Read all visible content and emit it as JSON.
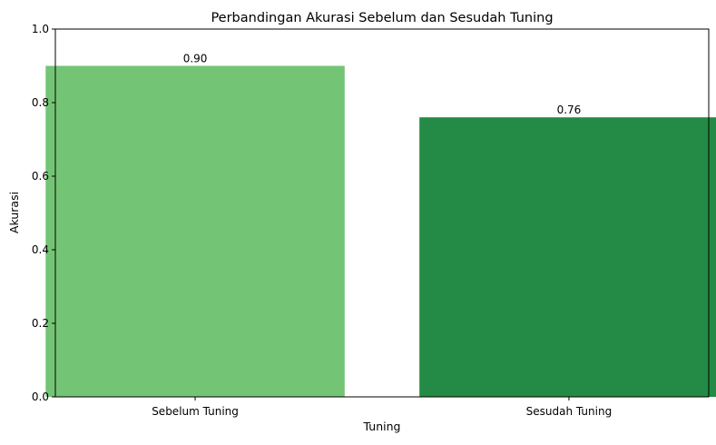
{
  "chart_data": {
    "type": "bar",
    "title": "Perbandingan Akurasi Sebelum dan Sesudah Tuning",
    "xlabel": "Tuning",
    "ylabel": "Akurasi",
    "categories": [
      "Sebelum Tuning",
      "Sesudah Tuning"
    ],
    "values": [
      0.9,
      0.76
    ],
    "data_labels": [
      "0.90",
      "0.76"
    ],
    "colors": [
      "#74c476",
      "#238b45"
    ],
    "ylim": [
      0,
      1.0
    ],
    "yticks": [
      0.0,
      0.2,
      0.4,
      0.6,
      0.8,
      1.0
    ],
    "ytick_labels": [
      "0.0",
      "0.2",
      "0.4",
      "0.6",
      "0.8",
      "1.0"
    ],
    "grid": false,
    "legend": "none"
  }
}
